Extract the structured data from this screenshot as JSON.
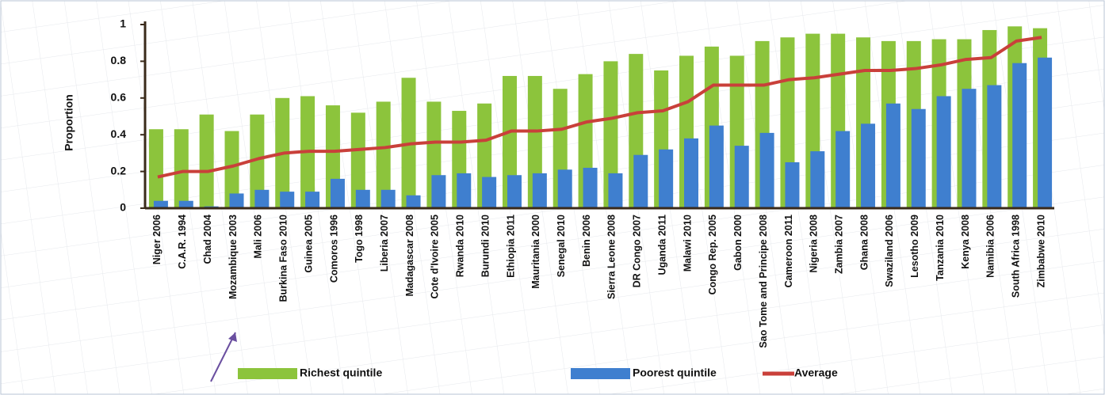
{
  "chart_data": {
    "type": "bar_line",
    "y_label": "Proportion",
    "categories": [
      "Niger 2006",
      "C.A.R. 1994",
      "Chad 2004",
      "Mozambique 2003",
      "Mali 2006",
      "Burkina Faso 2010",
      "Guinea 2005",
      "Comoros 1996",
      "Togo 1998",
      "Liberia 2007",
      "Madagascar 2008",
      "Cote d'Ivoire 2005",
      "Rwanda 2010",
      "Burundi 2010",
      "Ethiopia 2011",
      "Mauritania 2000",
      "Senegal 2010",
      "Benin 2006",
      "Sierra Leone 2008",
      "DR Congo 2007",
      "Uganda 2011",
      "Malawi 2010",
      "Congo Rep. 2005",
      "Gabon 2000",
      "Sao Tome and Principe 2008",
      "Cameroon 2011",
      "Nigeria 2008",
      "Zambia 2007",
      "Ghana 2008",
      "Swaziland 2006",
      "Lesotho 2009",
      "Tanzania 2010",
      "Kenya 2008",
      "Namibia 2006",
      "South Africa 1998",
      "Zimbabwe 2010"
    ],
    "series": [
      {
        "name": "Richest quintile",
        "color": "#8cc43c",
        "kind": "bar",
        "values": [
          0.43,
          0.43,
          0.51,
          0.42,
          0.51,
          0.6,
          0.61,
          0.56,
          0.52,
          0.58,
          0.71,
          0.58,
          0.53,
          0.57,
          0.72,
          0.72,
          0.65,
          0.73,
          0.8,
          0.84,
          0.75,
          0.83,
          0.88,
          0.83,
          0.91,
          0.93,
          0.95,
          0.95,
          0.93,
          0.91,
          0.91,
          0.92,
          0.92,
          0.97,
          0.99,
          0.98
        ]
      },
      {
        "name": "Poorest quintile",
        "color": "#3f7fcf",
        "kind": "bar",
        "values": [
          0.04,
          0.04,
          0.01,
          0.08,
          0.1,
          0.09,
          0.09,
          0.16,
          0.1,
          0.1,
          0.07,
          0.18,
          0.19,
          0.17,
          0.18,
          0.19,
          0.21,
          0.22,
          0.19,
          0.29,
          0.32,
          0.38,
          0.45,
          0.34,
          0.41,
          0.25,
          0.31,
          0.42,
          0.46,
          0.57,
          0.54,
          0.61,
          0.65,
          0.67,
          0.79,
          0.82
        ]
      },
      {
        "name": "Average",
        "color": "#c9403a",
        "kind": "line",
        "values": [
          0.17,
          0.2,
          0.2,
          0.23,
          0.27,
          0.3,
          0.31,
          0.31,
          0.32,
          0.33,
          0.35,
          0.36,
          0.36,
          0.37,
          0.42,
          0.42,
          0.43,
          0.47,
          0.49,
          0.52,
          0.53,
          0.58,
          0.67,
          0.67,
          0.67,
          0.7,
          0.71,
          0.73,
          0.75,
          0.75,
          0.76,
          0.78,
          0.81,
          0.82,
          0.91,
          0.93
        ]
      }
    ],
    "ylim": [
      0,
      1
    ],
    "yticks": [
      0,
      0.2,
      0.4,
      0.6,
      0.8,
      1
    ]
  }
}
